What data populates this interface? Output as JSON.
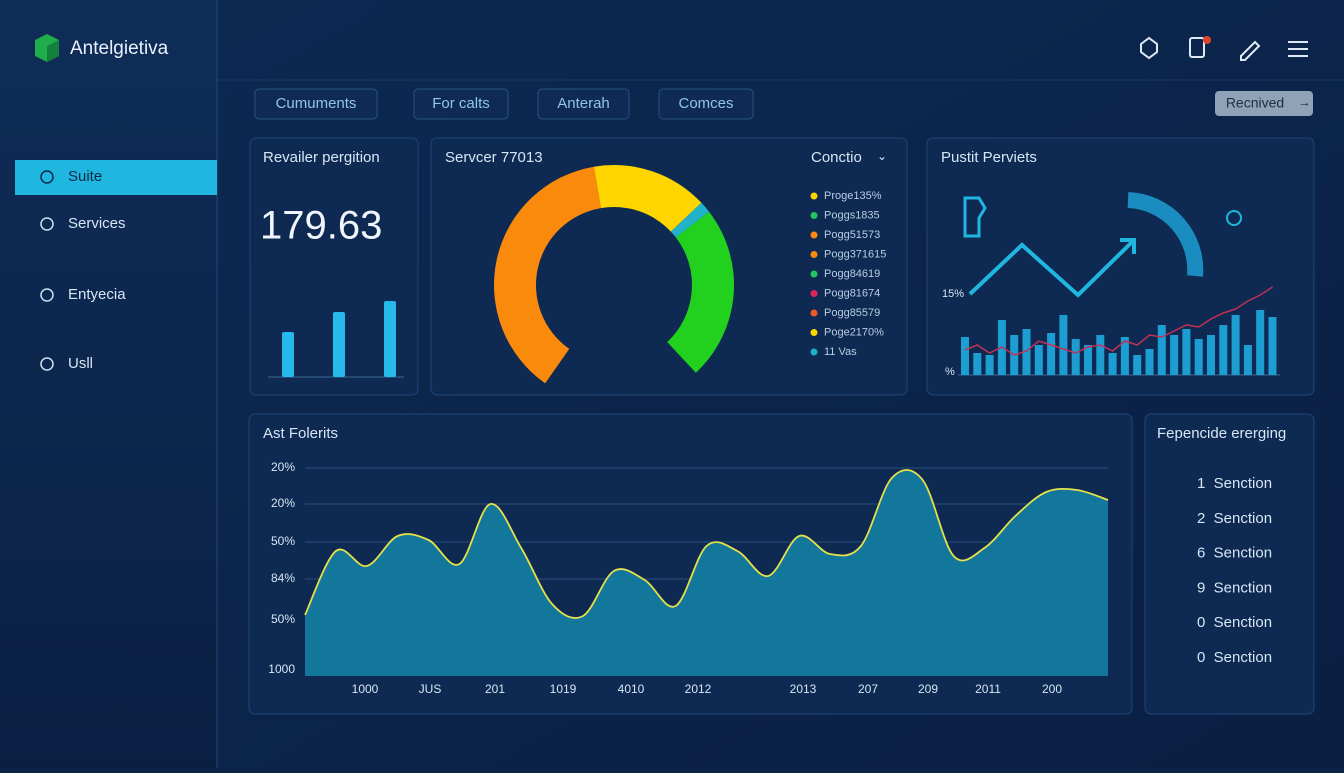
{
  "brand": "Antelgietiva",
  "nav": [
    "Suite",
    "Services",
    "Entyecia",
    "Usll"
  ],
  "tabs": [
    "Cumuments",
    "For calts",
    "Anterah",
    "Comces"
  ],
  "action_button": "Recnived",
  "revenue_panel": {
    "title": "Revailer pergition",
    "value": "179.63",
    "bars": [
      45,
      65,
      76
    ]
  },
  "gauge_panel": {
    "title": "Servcer 77013",
    "dropdown": "Conctio",
    "segments": [
      {
        "color": "#f98a0c",
        "value": 48
      },
      {
        "color": "#ffd500",
        "value": 20
      },
      {
        "color": "#1fb2c9",
        "value": 2
      },
      {
        "color": "#22d11d",
        "value": 30
      }
    ],
    "legend": [
      {
        "label": "Proge135%",
        "color": "#ffd500"
      },
      {
        "label": "Poggs1835",
        "color": "#22c55e"
      },
      {
        "label": "Pogg51573",
        "color": "#f98a0c"
      },
      {
        "label": "Pogg371615",
        "color": "#f98a0c"
      },
      {
        "label": "Pogg84619",
        "color": "#22c55e"
      },
      {
        "label": "Pogg81674",
        "color": "#e0245e"
      },
      {
        "label": "Pogg85579",
        "color": "#f05a28"
      },
      {
        "label": "Poge2170%",
        "color": "#ffd500"
      },
      {
        "label": "11 Vas",
        "color": "#1fb2c9"
      }
    ]
  },
  "trend_panel": {
    "title": "Pustit Perviets",
    "upper_label": "15%",
    "lower_label": "%",
    "bars": [
      38,
      22,
      20,
      55,
      40,
      46,
      30,
      42,
      60,
      36,
      30,
      40,
      22,
      38,
      20,
      26,
      50,
      40,
      46,
      36,
      40,
      50,
      60,
      30,
      65,
      58
    ],
    "line": [
      25,
      30,
      22,
      28,
      20,
      24,
      34,
      30,
      26,
      22,
      28,
      30,
      24,
      34,
      30,
      40,
      38,
      44,
      50,
      48,
      56,
      62,
      66,
      74,
      80,
      88
    ]
  },
  "area_panel": {
    "title": "Ast Folerits",
    "y_labels": [
      "20%",
      "20%",
      "50%",
      "84%",
      "50%",
      "1000"
    ],
    "x_labels": [
      "1000",
      "JUS",
      "201",
      "1019",
      "4010",
      "2012",
      "2013",
      "207",
      "209",
      "2011",
      "200"
    ],
    "values": [
      61,
      125,
      110,
      140,
      136,
      112,
      172,
      128,
      72,
      60,
      105,
      96,
      70,
      130,
      125,
      100,
      140,
      122,
      130,
      198,
      196,
      120,
      128,
      160,
      184,
      186,
      176
    ]
  },
  "list_panel": {
    "title": "Fepencide ererging",
    "items": [
      "1  Senction",
      "2  Senction",
      "6  Senction",
      "9  Senction",
      "0  Senction",
      "0  Senction"
    ]
  }
}
